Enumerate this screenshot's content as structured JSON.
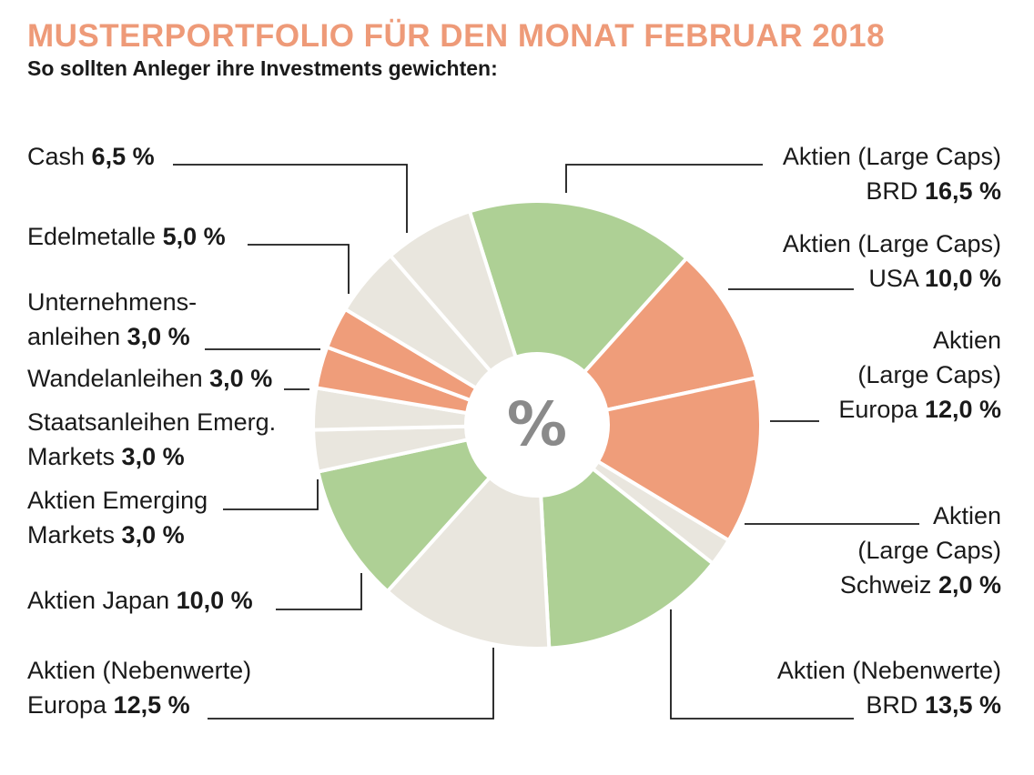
{
  "title": "MUSTERPORTFOLIO FÜR DEN MONAT FEBRUAR 2018",
  "subtitle": "So sollten Anleger ihre Investments gewichten:",
  "colors": {
    "title": "#ee9a78",
    "green": "#aed095",
    "orange": "#ef9d7a",
    "beige": "#e9e6de",
    "line": "#1a1a1a"
  },
  "chart_data": {
    "type": "pie",
    "center_label": "%",
    "slices": [
      {
        "label": "Aktien (Large Caps) BRD",
        "label_lines": [
          "Aktien (Large Caps)",
          "BRD"
        ],
        "value_text": "16,5 %",
        "value": 16.5,
        "color": "green"
      },
      {
        "label": "Aktien (Large Caps) USA",
        "label_lines": [
          "Aktien (Large Caps)",
          "USA"
        ],
        "value_text": "10,0 %",
        "value": 10.0,
        "color": "orange"
      },
      {
        "label": "Aktien (Large Caps) Europa",
        "label_lines": [
          "Aktien",
          "(Large Caps)",
          "Europa"
        ],
        "value_text": "12,0 %",
        "value": 12.0,
        "color": "orange"
      },
      {
        "label": "Aktien (Large Caps) Schweiz",
        "label_lines": [
          "Aktien",
          "(Large Caps)",
          "Schweiz"
        ],
        "value_text": "2,0 %",
        "value": 2.0,
        "color": "beige"
      },
      {
        "label": "Aktien (Nebenwerte) BRD",
        "label_lines": [
          "Aktien (Nebenwerte)",
          "BRD"
        ],
        "value_text": "13,5 %",
        "value": 13.5,
        "color": "green"
      },
      {
        "label": "Aktien (Nebenwerte) Europa",
        "label_lines": [
          "Aktien (Nebenwerte)",
          "Europa"
        ],
        "value_text": "12,5 %",
        "value": 12.5,
        "color": "beige"
      },
      {
        "label": "Aktien Japan",
        "label_lines": [
          "Aktien Japan"
        ],
        "value_text": "10,0 %",
        "value": 10.0,
        "color": "green"
      },
      {
        "label": "Aktien Emerging Markets",
        "label_lines": [
          "Aktien Emerging",
          "Markets"
        ],
        "value_text": "3,0 %",
        "value": 3.0,
        "color": "beige"
      },
      {
        "label": "Staatsanleihen Emerg. Markets",
        "label_lines": [
          "Staatsanleihen Emerg.",
          "Markets"
        ],
        "value_text": "3,0 %",
        "value": 3.0,
        "color": "beige"
      },
      {
        "label": "Wandelanleihen",
        "label_lines": [
          "Wandelanleihen"
        ],
        "value_text": "3,0 %",
        "value": 3.0,
        "color": "orange"
      },
      {
        "label": "Unternehmensanleihen",
        "label_lines": [
          "Unternehmens-",
          "anleihen"
        ],
        "value_text": "3,0 %",
        "value": 3.0,
        "color": "orange"
      },
      {
        "label": "Edelmetalle",
        "label_lines": [
          "Edelmetalle"
        ],
        "value_text": "5,0 %",
        "value": 5.0,
        "color": "beige"
      },
      {
        "label": "Cash",
        "label_lines": [
          "Cash"
        ],
        "value_text": "6,5 %",
        "value": 6.5,
        "color": "beige"
      }
    ]
  }
}
